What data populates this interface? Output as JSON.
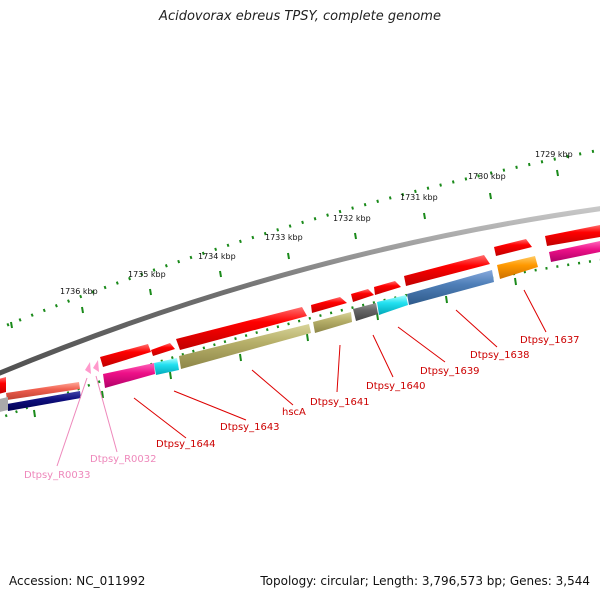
{
  "title": "Acidovorax ebreus TPSY, complete genome",
  "footer": {
    "accession": "Accession: NC_011992",
    "stats": "Topology: circular; Length: 3,796,573 bp; Genes: 3,544"
  },
  "ruler": {
    "labels": [
      "1736 kbp",
      "1735 kbp",
      "1734 kbp",
      "1733 kbp",
      "1732 kbp",
      "1731 kbp",
      "1730 kbp",
      "1729 kbp"
    ]
  },
  "gene_labels": [
    "Dtpsy_R0033",
    "Dtpsy_R0032",
    "Dtpsy_1644",
    "Dtpsy_1643",
    "hscA",
    "Dtpsy_1641",
    "Dtpsy_1640",
    "Dtpsy_1639",
    "Dtpsy_1638",
    "Dtpsy_1637"
  ],
  "colors": {
    "backbone": "#7a7a7a",
    "cds": "#ff0000",
    "rna": "#ff99cc",
    "gene_label": "#cc0000",
    "rna_label": "#ee88bb",
    "tick": "#118811"
  }
}
